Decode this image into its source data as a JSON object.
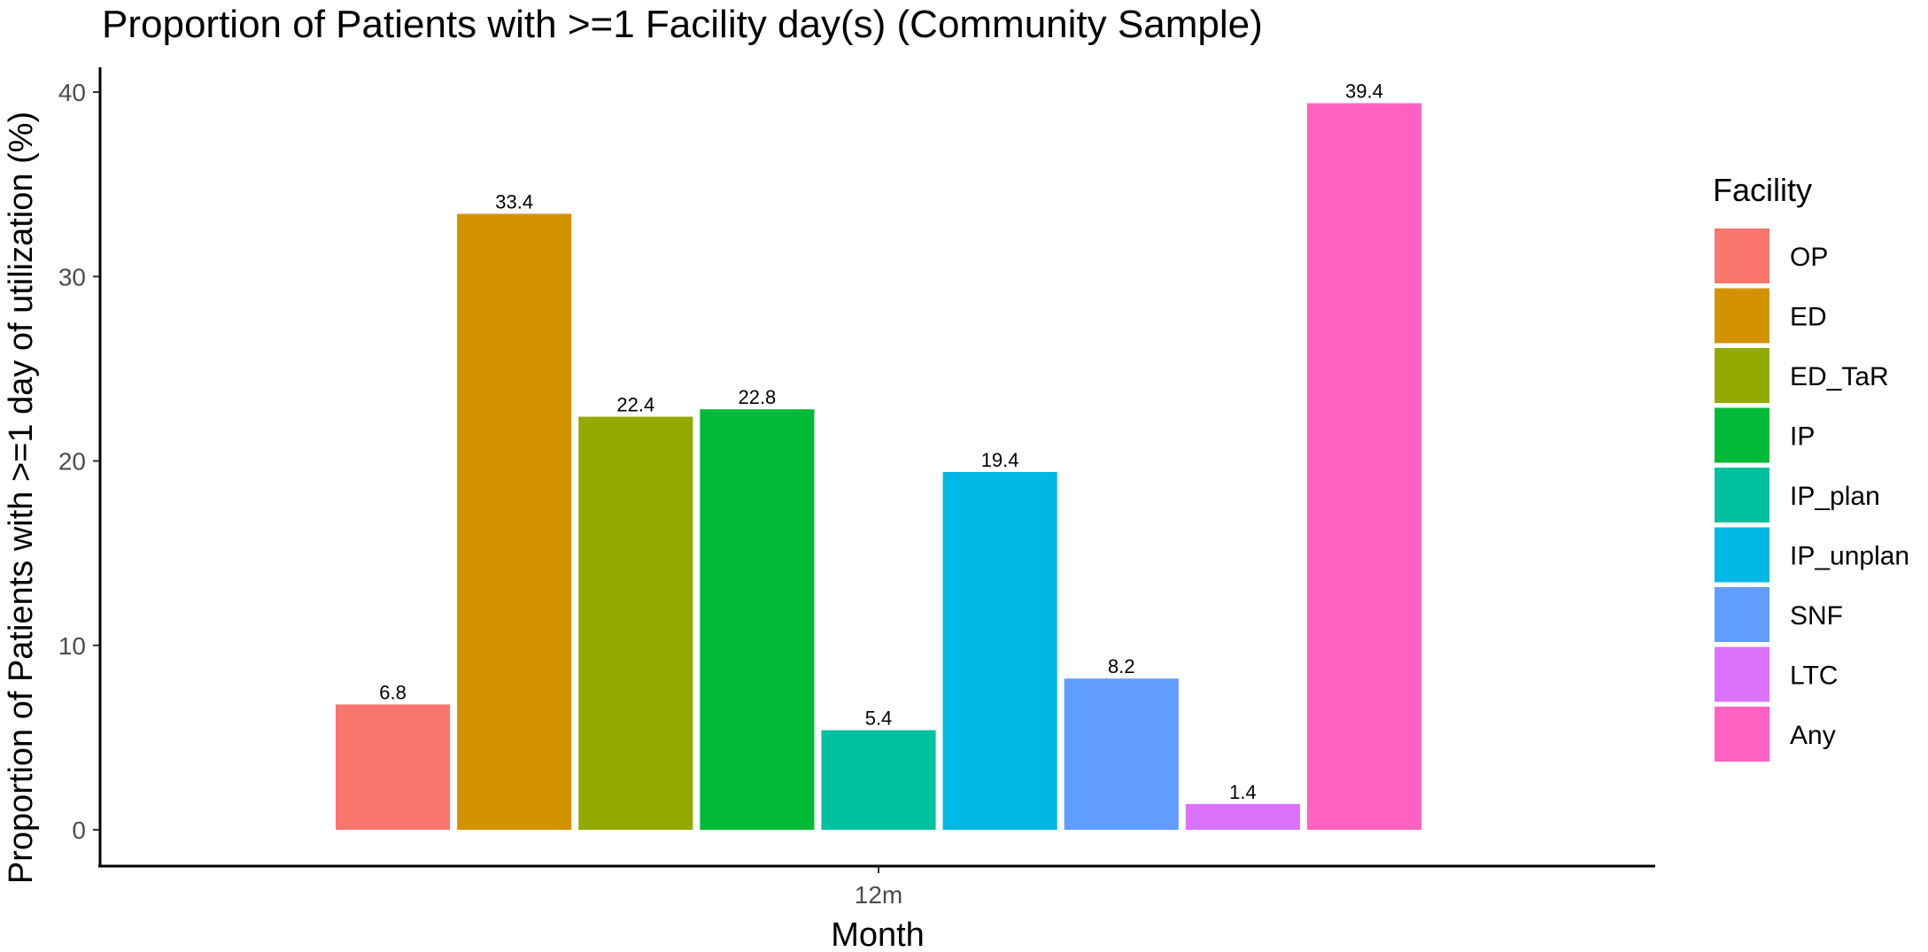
{
  "chart_data": {
    "type": "bar",
    "title": "Proportion of Patients with >=1 Facility day(s) (Community Sample)",
    "xlabel": "Month",
    "ylabel": "Proportion of Patients with >=1 day of utilization (%)",
    "categories": [
      "12m"
    ],
    "ylim": [
      0,
      40
    ],
    "yticks": [
      0,
      10,
      20,
      30,
      40
    ],
    "grid": false,
    "legend": {
      "title": "Facility",
      "position": "right"
    },
    "series": [
      {
        "name": "OP",
        "values": [
          6.8
        ],
        "label": "6.8",
        "color": "#F8766D"
      },
      {
        "name": "ED",
        "values": [
          33.4
        ],
        "label": "33.4",
        "color": "#D39200"
      },
      {
        "name": "ED_TaR",
        "values": [
          22.4
        ],
        "label": "22.4",
        "color": "#93AA00"
      },
      {
        "name": "IP",
        "values": [
          22.8
        ],
        "label": "22.8",
        "color": "#00BA38"
      },
      {
        "name": "IP_plan",
        "values": [
          5.4
        ],
        "label": "5.4",
        "color": "#00C19F"
      },
      {
        "name": "IP_unplan",
        "values": [
          19.4
        ],
        "label": "19.4",
        "color": "#00B9E3"
      },
      {
        "name": "SNF",
        "values": [
          8.2
        ],
        "label": "8.2",
        "color": "#619CFF"
      },
      {
        "name": "LTC",
        "values": [
          1.4
        ],
        "label": "1.4",
        "color": "#DB72FB"
      },
      {
        "name": "Any",
        "values": [
          39.4
        ],
        "label": "39.4",
        "color": "#FF61C3"
      }
    ]
  }
}
